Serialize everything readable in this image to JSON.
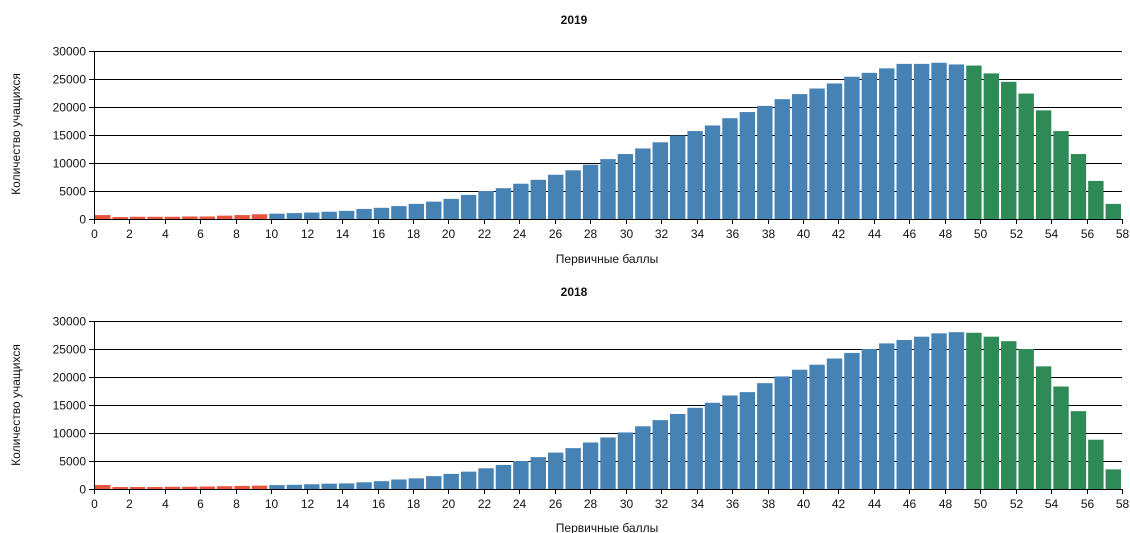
{
  "colors": {
    "low": "#e8533b",
    "mid": "#4682b4",
    "high": "#2e8b57"
  },
  "chart_data": [
    {
      "type": "bar",
      "title": "2019",
      "xlabel": "Первичные баллы",
      "ylabel": "Количество учащихся",
      "ylim": [
        0,
        30000
      ],
      "yticks": [
        0,
        5000,
        10000,
        15000,
        20000,
        25000,
        30000
      ],
      "xticks": [
        0,
        2,
        4,
        6,
        8,
        10,
        12,
        14,
        16,
        18,
        20,
        22,
        24,
        26,
        28,
        30,
        32,
        34,
        36,
        38,
        40,
        42,
        44,
        46,
        48,
        50,
        52,
        54,
        56,
        58
      ],
      "grid": true,
      "x": [
        0,
        1,
        2,
        3,
        4,
        5,
        6,
        7,
        8,
        9,
        10,
        11,
        12,
        13,
        14,
        15,
        16,
        17,
        18,
        19,
        20,
        21,
        22,
        23,
        24,
        25,
        26,
        27,
        28,
        29,
        30,
        31,
        32,
        33,
        34,
        35,
        36,
        37,
        38,
        39,
        40,
        41,
        42,
        43,
        44,
        45,
        46,
        47,
        48,
        49,
        50,
        51,
        52,
        53,
        54,
        55,
        56,
        57,
        58
      ],
      "values": [
        700,
        350,
        400,
        400,
        400,
        450,
        450,
        600,
        700,
        850,
        950,
        1050,
        1150,
        1300,
        1450,
        1800,
        2000,
        2300,
        2700,
        3100,
        3600,
        4300,
        5000,
        5500,
        6300,
        7000,
        7900,
        8700,
        9700,
        10700,
        11600,
        12600,
        13700,
        14900,
        15700,
        16700,
        18000,
        19100,
        20200,
        21400,
        22300,
        23300,
        24200,
        25400,
        26100,
        26900,
        27700,
        27700,
        27900,
        27600,
        27400,
        26000,
        24500,
        22400,
        19400,
        15700,
        11600,
        6800,
        2700
      ],
      "groups": [
        "low",
        "low",
        "low",
        "low",
        "low",
        "low",
        "low",
        "low",
        "low",
        "low",
        "mid",
        "mid",
        "mid",
        "mid",
        "mid",
        "mid",
        "mid",
        "mid",
        "mid",
        "mid",
        "mid",
        "mid",
        "mid",
        "mid",
        "mid",
        "mid",
        "mid",
        "mid",
        "mid",
        "mid",
        "mid",
        "mid",
        "mid",
        "mid",
        "mid",
        "mid",
        "mid",
        "mid",
        "mid",
        "mid",
        "mid",
        "mid",
        "mid",
        "mid",
        "mid",
        "mid",
        "mid",
        "mid",
        "mid",
        "mid",
        "high",
        "high",
        "high",
        "high",
        "high",
        "high",
        "high",
        "high",
        "high"
      ]
    },
    {
      "type": "bar",
      "title": "2018",
      "xlabel": "Первичные баллы",
      "ylabel": "Количество учащихся",
      "ylim": [
        0,
        30000
      ],
      "yticks": [
        0,
        5000,
        10000,
        15000,
        20000,
        25000,
        30000
      ],
      "xticks": [
        0,
        2,
        4,
        6,
        8,
        10,
        12,
        14,
        16,
        18,
        20,
        22,
        24,
        26,
        28,
        30,
        32,
        34,
        36,
        38,
        40,
        42,
        44,
        46,
        48,
        50,
        52,
        54,
        56,
        58
      ],
      "grid": true,
      "x": [
        0,
        1,
        2,
        3,
        4,
        5,
        6,
        7,
        8,
        9,
        10,
        11,
        12,
        13,
        14,
        15,
        16,
        17,
        18,
        19,
        20,
        21,
        22,
        23,
        24,
        25,
        26,
        27,
        28,
        29,
        30,
        31,
        32,
        33,
        34,
        35,
        36,
        37,
        38,
        39,
        40,
        41,
        42,
        43,
        44,
        45,
        46,
        47,
        48,
        49,
        50,
        51,
        52,
        53,
        54,
        55,
        56,
        57,
        58
      ],
      "values": [
        700,
        350,
        350,
        350,
        400,
        400,
        450,
        500,
        550,
        600,
        700,
        750,
        850,
        950,
        1000,
        1200,
        1400,
        1700,
        1900,
        2300,
        2700,
        3100,
        3700,
        4300,
        5000,
        5700,
        6500,
        7300,
        8300,
        9200,
        10100,
        11200,
        12300,
        13400,
        14500,
        15400,
        16700,
        17300,
        18900,
        20100,
        21300,
        22200,
        23300,
        24300,
        25000,
        26000,
        26600,
        27200,
        27800,
        28000,
        27900,
        27200,
        26400,
        25000,
        21900,
        18300,
        13900,
        8800,
        3500
      ],
      "groups": [
        "low",
        "low",
        "low",
        "low",
        "low",
        "low",
        "low",
        "low",
        "low",
        "low",
        "mid",
        "mid",
        "mid",
        "mid",
        "mid",
        "mid",
        "mid",
        "mid",
        "mid",
        "mid",
        "mid",
        "mid",
        "mid",
        "mid",
        "mid",
        "mid",
        "mid",
        "mid",
        "mid",
        "mid",
        "mid",
        "mid",
        "mid",
        "mid",
        "mid",
        "mid",
        "mid",
        "mid",
        "mid",
        "mid",
        "mid",
        "mid",
        "mid",
        "mid",
        "mid",
        "mid",
        "mid",
        "mid",
        "mid",
        "mid",
        "high",
        "high",
        "high",
        "high",
        "high",
        "high",
        "high",
        "high",
        "high"
      ]
    }
  ]
}
